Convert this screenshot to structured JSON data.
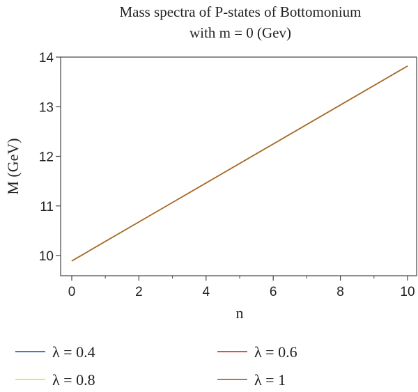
{
  "chart_data": {
    "type": "line",
    "title": [
      "Mass spectra of P-states of Bottomonium",
      "with m = 0 (Gev)"
    ],
    "xlabel": "n",
    "ylabel": "M (GeV)",
    "xlim": [
      0,
      10
    ],
    "ylim": [
      9.7,
      14.1
    ],
    "xticks": [
      0,
      2,
      4,
      6,
      8,
      10
    ],
    "xtick_labels": [
      "0",
      "2",
      "4",
      "6",
      "8",
      "10"
    ],
    "xminor": [
      1,
      3,
      5,
      7,
      9
    ],
    "yticks": [
      10,
      11,
      12,
      13,
      14
    ],
    "ytick_labels": [
      "10",
      "11",
      "12",
      "13",
      "14"
    ],
    "grid": false,
    "legend_position": "bottom",
    "series": [
      {
        "name": "λ = 0.4",
        "color": "#3a5bbf",
        "x": [
          0,
          10
        ],
        "y": [
          9.89,
          13.82
        ]
      },
      {
        "name": "λ = 0.6",
        "color": "#e0342a",
        "x": [
          0,
          10
        ],
        "y": [
          9.89,
          13.82
        ]
      },
      {
        "name": "λ = 0.8",
        "color": "#f2e21b",
        "x": [
          0,
          10
        ],
        "y": [
          9.89,
          13.82
        ]
      },
      {
        "name": "λ = 1",
        "color": "#a0682c",
        "x": [
          0,
          10
        ],
        "y": [
          9.89,
          13.82
        ]
      }
    ]
  }
}
